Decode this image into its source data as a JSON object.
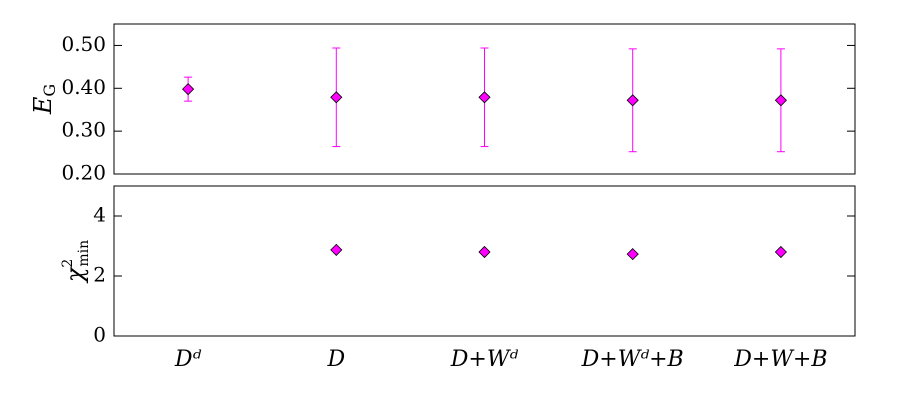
{
  "chart_data": [
    {
      "type": "errorbar",
      "ylabel": {
        "base": "E",
        "sub": "G"
      },
      "values": [
        0.398,
        0.379,
        0.379,
        0.372,
        0.372
      ],
      "errors": [
        0.028,
        0.115,
        0.115,
        0.12,
        0.12
      ],
      "color": "#ff00ff",
      "ylim": [
        0.2,
        0.55
      ],
      "yticks": [
        {
          "value": 0.2,
          "label": "0.20"
        },
        {
          "value": 0.3,
          "label": "0.30"
        },
        {
          "value": 0.4,
          "label": "0.40"
        },
        {
          "value": 0.5,
          "label": "0.50"
        }
      ]
    },
    {
      "type": "scatter",
      "ylabel": {
        "base": "χ",
        "sup": "2",
        "sub": "min"
      },
      "categories": [
        "Dᵈ",
        "D",
        "D+Wᵈ",
        "D+Wᵈ+B",
        "D+W+B"
      ],
      "values": [
        null,
        2.87,
        2.8,
        2.73,
        2.8
      ],
      "color": "#ff00ff",
      "ylim": [
        0,
        5
      ],
      "yticks": [
        0,
        2,
        4
      ]
    }
  ]
}
